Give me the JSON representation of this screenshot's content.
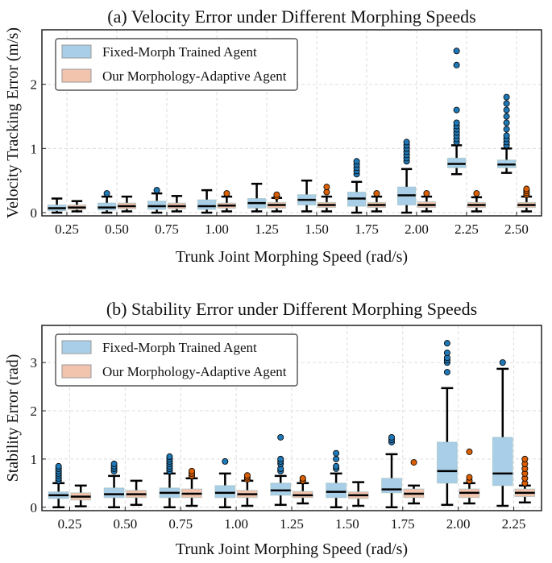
{
  "chart_data": [
    {
      "type": "box",
      "title": "(a) Velocity Error under Different Morphing Speeds",
      "xlabel": "Trunk Joint Morphing Speed (rad/s)",
      "ylabel": "Velocity Tracking Error (m/s)",
      "ylim": [
        -0.05,
        2.85
      ],
      "yticks": [
        0,
        1,
        2
      ],
      "grid": true,
      "legend": "top-left",
      "categories": [
        "0.25",
        "0.50",
        "0.75",
        "1.00",
        "1.25",
        "1.50",
        "1.75",
        "2.00",
        "2.25",
        "2.50"
      ],
      "series": [
        {
          "name": "Fixed-Morph Trained Agent",
          "color": "#a9cfe8",
          "outlier_color": "#1f77b4",
          "boxes": [
            {
              "lo": 0,
              "q1": 0.03,
              "med": 0.07,
              "q3": 0.12,
              "hi": 0.22,
              "out": []
            },
            {
              "lo": 0,
              "q1": 0.04,
              "med": 0.08,
              "q3": 0.15,
              "hi": 0.25,
              "out": [
                0.3
              ]
            },
            {
              "lo": 0,
              "q1": 0.05,
              "med": 0.1,
              "q3": 0.18,
              "hi": 0.3,
              "out": [
                0.35
              ]
            },
            {
              "lo": 0,
              "q1": 0.05,
              "med": 0.1,
              "q3": 0.2,
              "hi": 0.35,
              "out": []
            },
            {
              "lo": 0.02,
              "q1": 0.07,
              "med": 0.15,
              "q3": 0.22,
              "hi": 0.45,
              "out": []
            },
            {
              "lo": 0.02,
              "q1": 0.12,
              "med": 0.2,
              "q3": 0.28,
              "hi": 0.5,
              "out": []
            },
            {
              "lo": 0,
              "q1": 0.1,
              "med": 0.22,
              "q3": 0.32,
              "hi": 0.48,
              "out": [
                0.6,
                0.65,
                0.7,
                0.75,
                0.8
              ]
            },
            {
              "lo": 0,
              "q1": 0.12,
              "med": 0.27,
              "q3": 0.4,
              "hi": 0.68,
              "out": [
                0.8,
                0.85,
                0.9,
                0.95,
                1.0,
                1.05,
                1.1
              ]
            },
            {
              "lo": 0.6,
              "q1": 0.7,
              "med": 0.76,
              "q3": 0.85,
              "hi": 1.05,
              "out": [
                1.1,
                1.15,
                1.2,
                1.25,
                1.3,
                1.35,
                1.4,
                1.6,
                2.3,
                2.52
              ]
            },
            {
              "lo": 0.62,
              "q1": 0.7,
              "med": 0.75,
              "q3": 0.82,
              "hi": 1.0,
              "out": [
                1.05,
                1.1,
                1.15,
                1.2,
                1.3,
                1.4,
                1.5,
                1.6,
                1.7,
                1.8
              ]
            }
          ]
        },
        {
          "name": "Our Morphology-Adaptive Agent",
          "color": "#f2c4ae",
          "outlier_color": "#d95f02",
          "boxes": [
            {
              "lo": 0.02,
              "q1": 0.05,
              "med": 0.08,
              "q3": 0.12,
              "hi": 0.18,
              "out": []
            },
            {
              "lo": 0.02,
              "q1": 0.06,
              "med": 0.1,
              "q3": 0.15,
              "hi": 0.25,
              "out": []
            },
            {
              "lo": 0.02,
              "q1": 0.06,
              "med": 0.1,
              "q3": 0.15,
              "hi": 0.26,
              "out": []
            },
            {
              "lo": 0.02,
              "q1": 0.07,
              "med": 0.11,
              "q3": 0.15,
              "hi": 0.25,
              "out": [
                0.3
              ]
            },
            {
              "lo": 0.02,
              "q1": 0.07,
              "med": 0.12,
              "q3": 0.16,
              "hi": 0.23,
              "out": [
                0.25,
                0.28
              ]
            },
            {
              "lo": 0.02,
              "q1": 0.08,
              "med": 0.12,
              "q3": 0.16,
              "hi": 0.25,
              "out": [
                0.32,
                0.4
              ]
            },
            {
              "lo": 0.02,
              "q1": 0.08,
              "med": 0.12,
              "q3": 0.16,
              "hi": 0.25,
              "out": [
                0.3
              ]
            },
            {
              "lo": 0.02,
              "q1": 0.08,
              "med": 0.12,
              "q3": 0.17,
              "hi": 0.25,
              "out": [
                0.3
              ]
            },
            {
              "lo": 0.02,
              "q1": 0.08,
              "med": 0.12,
              "q3": 0.16,
              "hi": 0.24,
              "out": [
                0.3
              ]
            },
            {
              "lo": 0.02,
              "q1": 0.08,
              "med": 0.12,
              "q3": 0.16,
              "hi": 0.25,
              "out": [
                0.28,
                0.31,
                0.34,
                0.37
              ]
            }
          ]
        }
      ]
    },
    {
      "type": "box",
      "title": "(b) Stability Error under Different Morphing Speeds",
      "xlabel": "Trunk Joint Morphing Speed (rad/s)",
      "ylabel": "Stability Error (rad)",
      "ylim": [
        -0.07,
        3.77
      ],
      "yticks": [
        0,
        1,
        2,
        3
      ],
      "grid": true,
      "legend": "top-left",
      "categories": [
        "0.25",
        "0.50",
        "0.75",
        "1.00",
        "1.25",
        "1.50",
        "1.75",
        "2.00",
        "2.25"
      ],
      "series": [
        {
          "name": "Fixed-Morph Trained Agent",
          "color": "#a9cfe8",
          "outlier_color": "#1f77b4",
          "boxes": [
            {
              "lo": 0,
              "q1": 0.18,
              "med": 0.25,
              "q3": 0.32,
              "hi": 0.5,
              "out": [
                0.55,
                0.6,
                0.65,
                0.7,
                0.75,
                0.8,
                0.85
              ]
            },
            {
              "lo": 0,
              "q1": 0.2,
              "med": 0.27,
              "q3": 0.4,
              "hi": 0.65,
              "out": [
                0.75,
                0.8,
                0.85,
                0.9
              ]
            },
            {
              "lo": 0,
              "q1": 0.2,
              "med": 0.3,
              "q3": 0.4,
              "hi": 0.7,
              "out": [
                0.75,
                0.8,
                0.85,
                0.9,
                0.95,
                1.0,
                1.05
              ]
            },
            {
              "lo": 0,
              "q1": 0.2,
              "med": 0.3,
              "q3": 0.45,
              "hi": 0.7,
              "out": [
                0.95
              ]
            },
            {
              "lo": 0.05,
              "q1": 0.25,
              "med": 0.35,
              "q3": 0.5,
              "hi": 0.65,
              "out": [
                0.75,
                0.8,
                0.9,
                0.95,
                1.0,
                1.45
              ]
            },
            {
              "lo": 0,
              "q1": 0.2,
              "med": 0.32,
              "q3": 0.5,
              "hi": 0.7,
              "out": [
                0.8,
                0.85,
                1.0,
                1.12
              ]
            },
            {
              "lo": 0,
              "q1": 0.3,
              "med": 0.37,
              "q3": 0.6,
              "hi": 1.1,
              "out": [
                1.35,
                1.4,
                1.45
              ]
            },
            {
              "lo": 0.05,
              "q1": 0.5,
              "med": 0.75,
              "q3": 1.35,
              "hi": 2.47,
              "out": [
                2.8,
                3.0,
                3.05,
                3.1,
                3.2,
                3.4
              ]
            },
            {
              "lo": 0.03,
              "q1": 0.45,
              "med": 0.7,
              "q3": 1.45,
              "hi": 2.87,
              "out": [
                3.0
              ]
            }
          ]
        },
        {
          "name": "Our Morphology-Adaptive Agent",
          "color": "#f2c4ae",
          "outlier_color": "#d95f02",
          "boxes": [
            {
              "lo": 0.02,
              "q1": 0.15,
              "med": 0.22,
              "q3": 0.3,
              "hi": 0.45,
              "out": []
            },
            {
              "lo": 0.05,
              "q1": 0.2,
              "med": 0.27,
              "q3": 0.35,
              "hi": 0.55,
              "out": []
            },
            {
              "lo": 0.03,
              "q1": 0.2,
              "med": 0.28,
              "q3": 0.38,
              "hi": 0.6,
              "out": [
                0.65,
                0.7,
                0.75
              ]
            },
            {
              "lo": 0.03,
              "q1": 0.2,
              "med": 0.27,
              "q3": 0.35,
              "hi": 0.55,
              "out": [
                0.58,
                0.62,
                0.66
              ]
            },
            {
              "lo": 0.08,
              "q1": 0.2,
              "med": 0.25,
              "q3": 0.33,
              "hi": 0.5,
              "out": [
                0.55,
                0.6
              ]
            },
            {
              "lo": 0.03,
              "q1": 0.18,
              "med": 0.25,
              "q3": 0.32,
              "hi": 0.52,
              "out": []
            },
            {
              "lo": 0.08,
              "q1": 0.2,
              "med": 0.28,
              "q3": 0.38,
              "hi": 0.45,
              "out": [
                0.93
              ]
            },
            {
              "lo": 0.08,
              "q1": 0.2,
              "med": 0.3,
              "q3": 0.38,
              "hi": 0.5,
              "out": [
                0.55,
                0.62,
                1.15
              ]
            },
            {
              "lo": 0.1,
              "q1": 0.22,
              "med": 0.3,
              "q3": 0.38,
              "hi": 0.45,
              "out": [
                0.5,
                0.6,
                0.7,
                0.8,
                0.9,
                1.0
              ]
            }
          ]
        }
      ]
    }
  ]
}
